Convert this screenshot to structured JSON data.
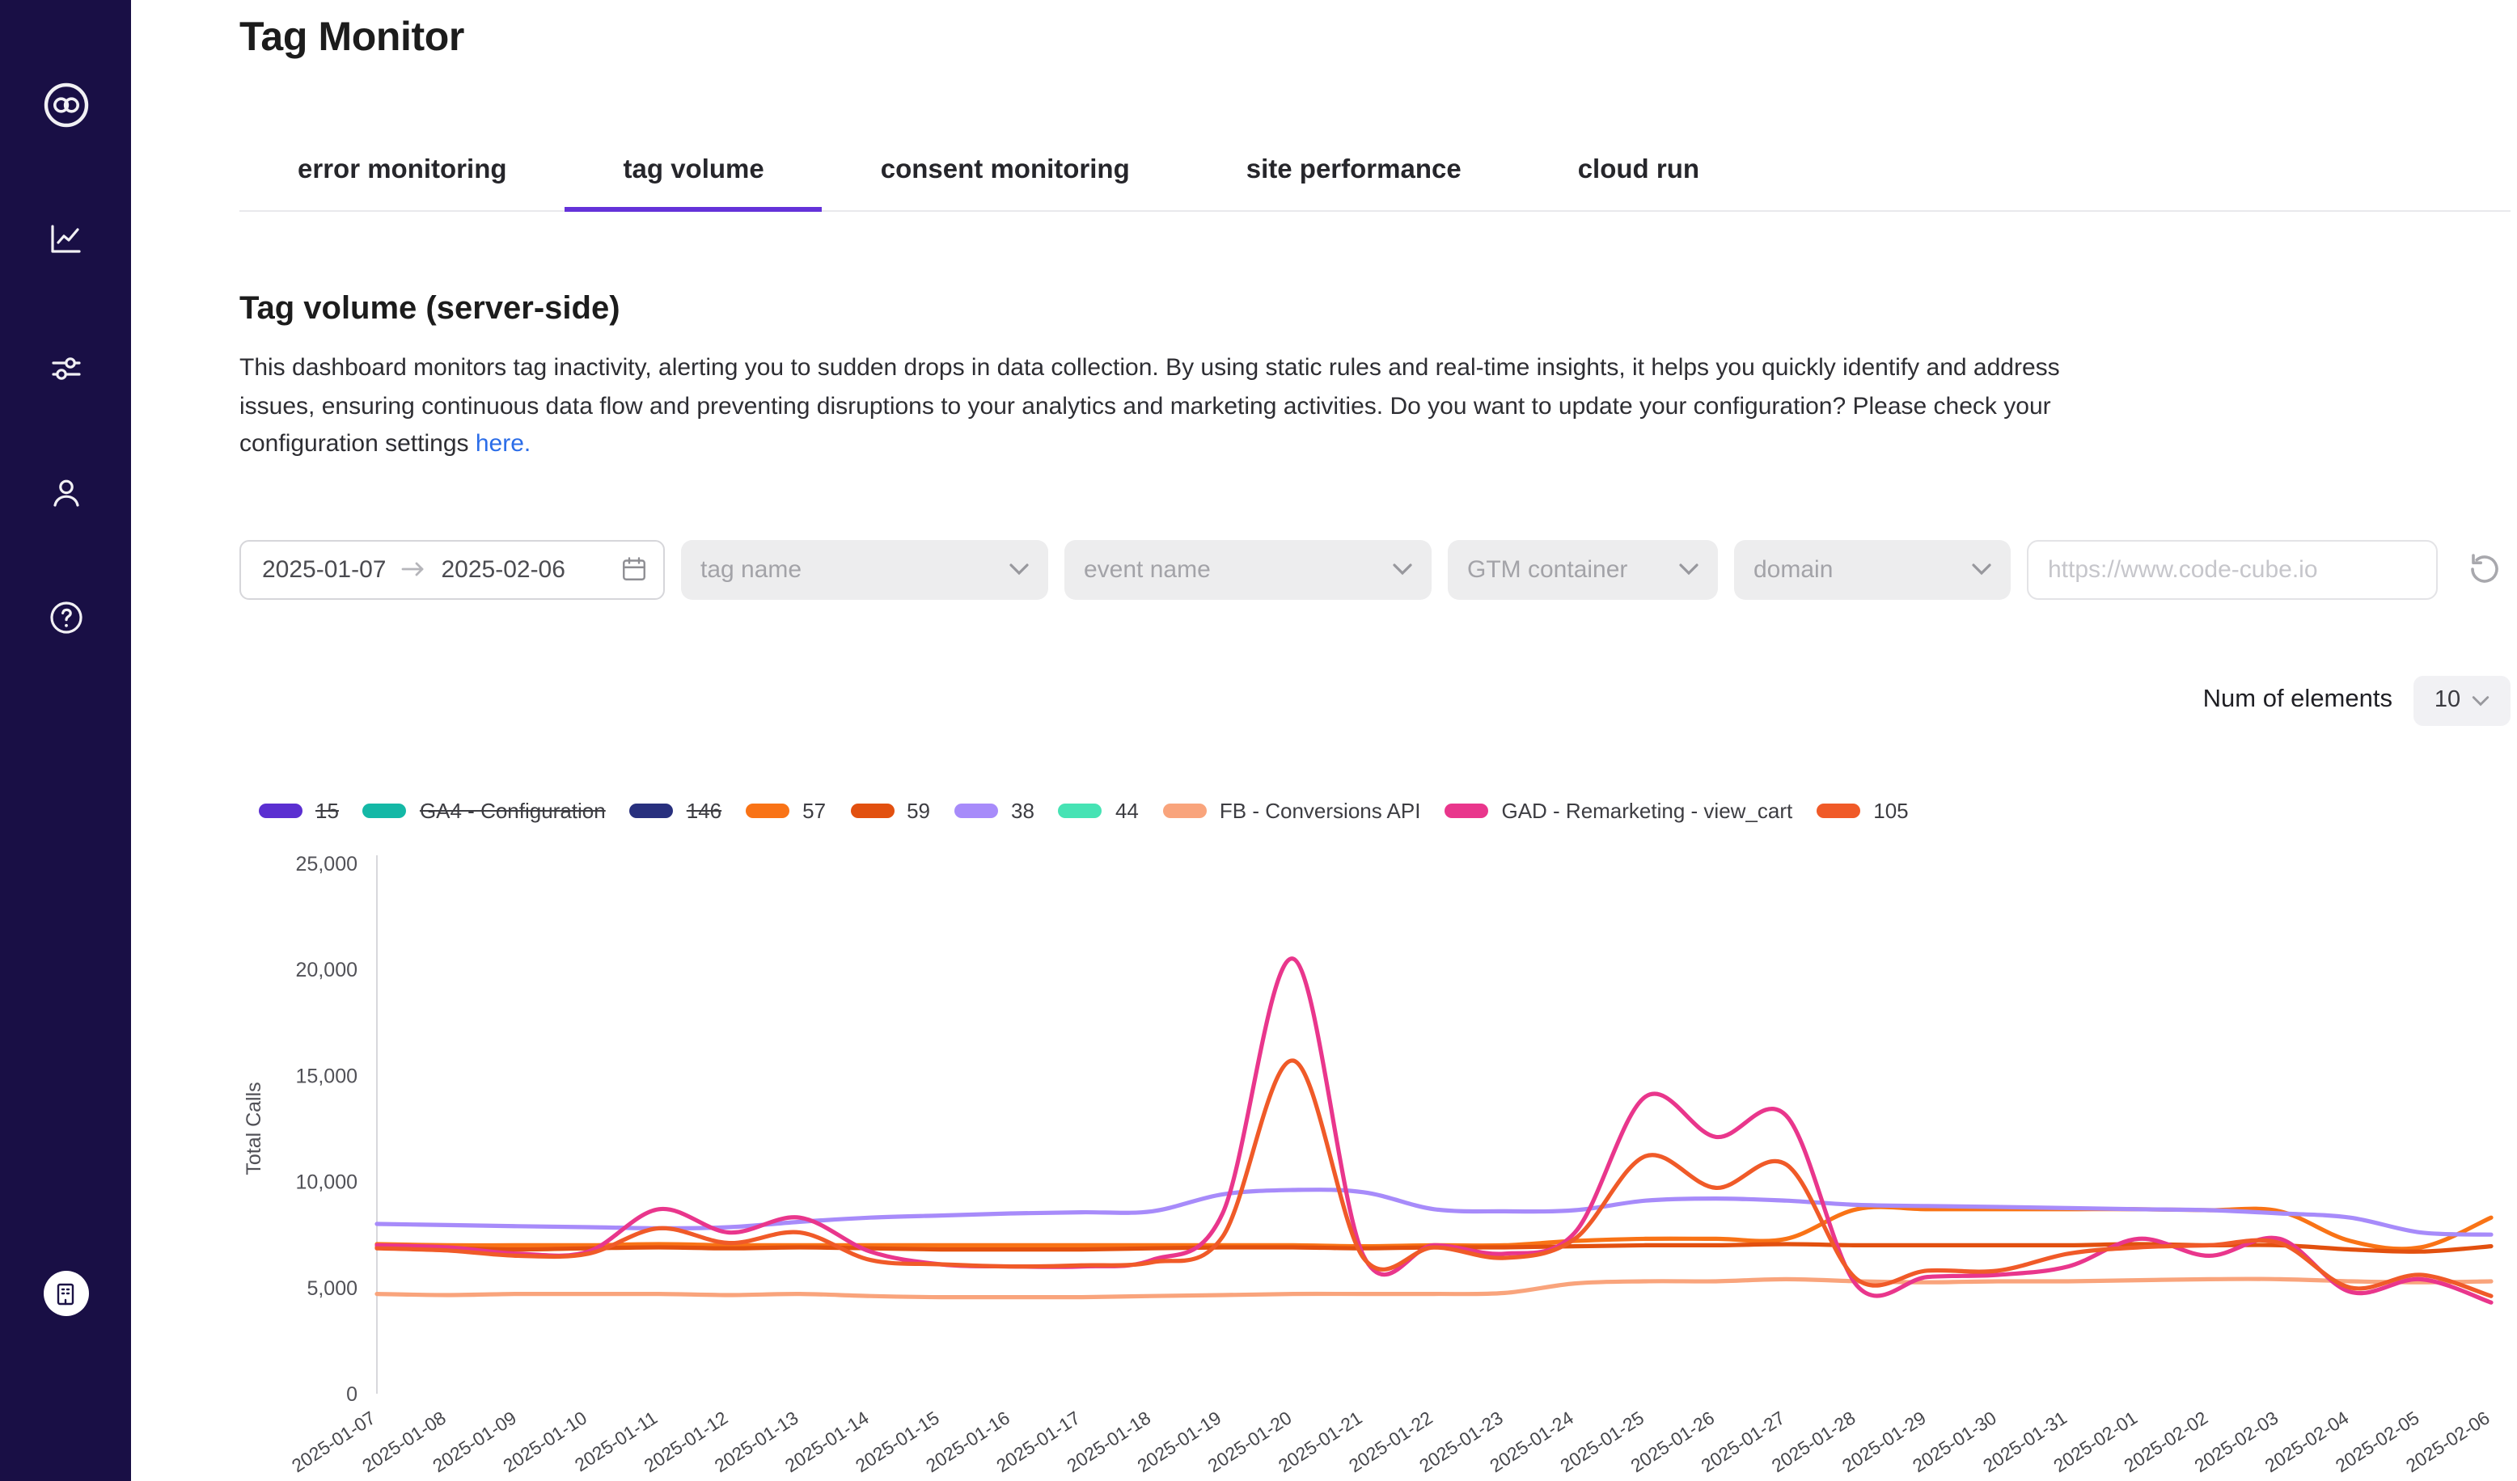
{
  "colors": {
    "accent": "#6432d9",
    "link": "#2b6de8",
    "sidebar_bg": "#190f45"
  },
  "header": {
    "title": "Tag Monitor"
  },
  "sidebar": {
    "icons": [
      "logo-icon",
      "line-chart-icon",
      "sliders-icon",
      "user-icon",
      "help-icon",
      "organization-icon"
    ]
  },
  "tabs": [
    {
      "label": "error monitoring",
      "active": false
    },
    {
      "label": "tag volume",
      "active": true
    },
    {
      "label": "consent monitoring",
      "active": false
    },
    {
      "label": "site performance",
      "active": false
    },
    {
      "label": "cloud run",
      "active": false
    }
  ],
  "section": {
    "heading": "Tag volume (server-side)",
    "description": "This dashboard monitors tag inactivity, alerting you to sudden drops in data collection. By using static rules and real-time insights, it helps you quickly identify and address issues, ensuring continuous data flow and preventing disruptions to your analytics and marketing activities. Do you want to update your configuration? Please check your configuration settings ",
    "link_text": "here."
  },
  "filters": {
    "date_start": "2025-01-07",
    "date_end": "2025-02-06",
    "selects": [
      {
        "placeholder": "tag name"
      },
      {
        "placeholder": "event name"
      },
      {
        "placeholder": "GTM container"
      },
      {
        "placeholder": "domain"
      }
    ],
    "url_placeholder": "https://www.code-cube.io"
  },
  "elements_control": {
    "label": "Num of elements",
    "value": "10"
  },
  "chart_data": {
    "type": "line",
    "title": "",
    "ylabel": "Total Calls",
    "xlabel": "",
    "ylim": [
      0,
      25000
    ],
    "yticks": [
      0,
      5000,
      10000,
      15000,
      20000,
      25000
    ],
    "grid": false,
    "legend_position": "top",
    "x": [
      "2025-01-07",
      "2025-01-08",
      "2025-01-09",
      "2025-01-10",
      "2025-01-11",
      "2025-01-12",
      "2025-01-13",
      "2025-01-14",
      "2025-01-15",
      "2025-01-16",
      "2025-01-17",
      "2025-01-18",
      "2025-01-19",
      "2025-01-20",
      "2025-01-21",
      "2025-01-22",
      "2025-01-23",
      "2025-01-24",
      "2025-01-25",
      "2025-01-26",
      "2025-01-27",
      "2025-01-28",
      "2025-01-29",
      "2025-01-30",
      "2025-01-31",
      "2025-02-01",
      "2025-02-02",
      "2025-02-03",
      "2025-02-04",
      "2025-02-05",
      "2025-02-06"
    ],
    "series": [
      {
        "name": "15",
        "color": "#5b2fd1",
        "hidden": true,
        "values": []
      },
      {
        "name": "GA4 - Configuration",
        "color": "#14b8a6",
        "hidden": true,
        "values": []
      },
      {
        "name": "146",
        "color": "#28307e",
        "hidden": true,
        "values": []
      },
      {
        "name": "57",
        "color": "#f97316",
        "hidden": false,
        "values": [
          7050,
          7000,
          7000,
          7000,
          7050,
          7000,
          7000,
          7000,
          7000,
          7000,
          7000,
          7000,
          7000,
          7000,
          6950,
          7000,
          7000,
          7200,
          7300,
          7300,
          7300,
          8700,
          8700,
          8700,
          8700,
          8700,
          8650,
          8600,
          7200,
          6900,
          8300
        ]
      },
      {
        "name": "59",
        "color": "#e2500f",
        "hidden": false,
        "values": [
          6900,
          6850,
          6800,
          6850,
          6900,
          6850,
          6900,
          6850,
          6800,
          6800,
          6800,
          6850,
          6900,
          6900,
          6850,
          6900,
          6900,
          6950,
          7000,
          7000,
          7050,
          7000,
          7000,
          7000,
          7000,
          7050,
          7000,
          7000,
          6800,
          6700,
          6950
        ]
      },
      {
        "name": "38",
        "color": "#a78bfa",
        "hidden": false,
        "values": [
          8000,
          7950,
          7900,
          7850,
          7800,
          7850,
          8100,
          8300,
          8400,
          8500,
          8550,
          8600,
          9400,
          9600,
          9500,
          8700,
          8600,
          8650,
          9100,
          9200,
          9100,
          8900,
          8850,
          8800,
          8750,
          8700,
          8650,
          8500,
          8300,
          7600,
          7500
        ]
      },
      {
        "name": "44",
        "color": "#46e3b4",
        "hidden": false,
        "values": []
      },
      {
        "name": "FB - Conversions API",
        "color": "#f9a47c",
        "hidden": false,
        "values": [
          4700,
          4650,
          4700,
          4700,
          4700,
          4650,
          4700,
          4600,
          4550,
          4550,
          4550,
          4600,
          4650,
          4700,
          4700,
          4700,
          4750,
          5200,
          5300,
          5300,
          5400,
          5300,
          5250,
          5300,
          5300,
          5350,
          5400,
          5400,
          5300,
          5250,
          5300
        ]
      },
      {
        "name": "GAD - Remarketing - view_cart",
        "color": "#e9368c",
        "hidden": false,
        "values": [
          7000,
          6900,
          6600,
          6700,
          8700,
          7600,
          8300,
          6700,
          6100,
          6000,
          6000,
          6300,
          8500,
          20500,
          6500,
          7000,
          6600,
          7600,
          14000,
          12100,
          13100,
          5100,
          5500,
          5600,
          6000,
          7300,
          6500,
          7300,
          4800,
          5400,
          4300
        ]
      },
      {
        "name": "105",
        "color": "#f05a28",
        "hidden": false,
        "values": [
          6850,
          6750,
          6500,
          6600,
          7800,
          7100,
          7600,
          6300,
          6100,
          6000,
          6050,
          6200,
          7400,
          15700,
          6400,
          6900,
          6400,
          7300,
          11200,
          9700,
          10800,
          5400,
          5800,
          5800,
          6600,
          6900,
          7000,
          7100,
          5000,
          5600,
          4600
        ]
      }
    ]
  }
}
